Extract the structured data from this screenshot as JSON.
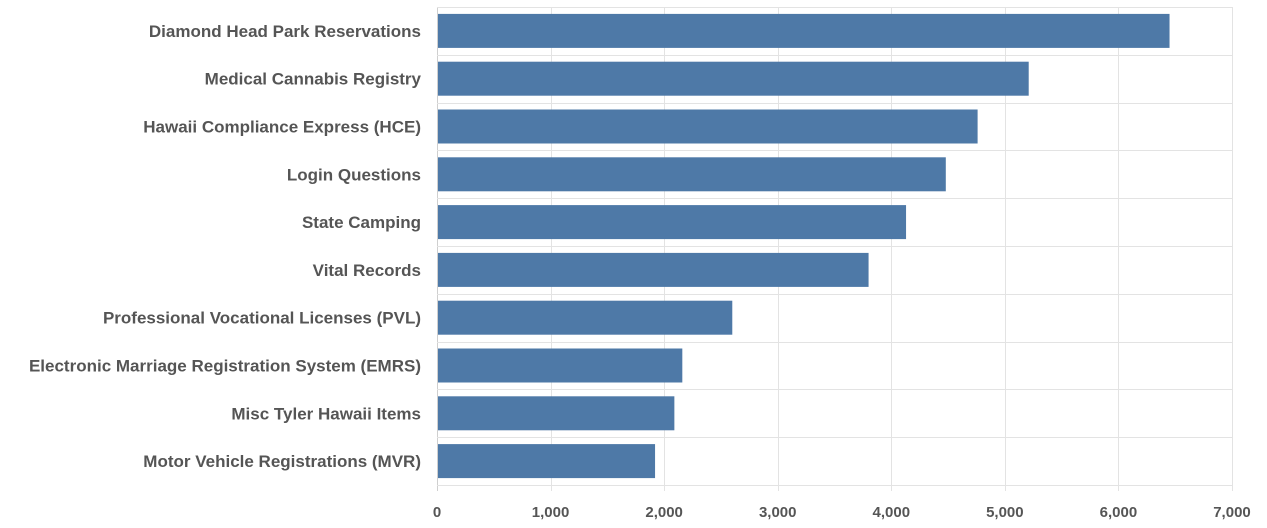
{
  "chart_data": {
    "type": "bar",
    "orientation": "horizontal",
    "title": "",
    "xlabel": "",
    "ylabel": "",
    "categories": [
      "Diamond Head Park Reservations",
      "Medical Cannabis Registry",
      "Hawaii Compliance Express (HCE)",
      "Login Questions",
      "State Camping",
      "Vital Records",
      "Professional Vocational Licenses (PVL)",
      "Electronic Marriage Registration System (EMRS)",
      "Misc Tyler Hawaii Items",
      "Motor Vehicle Registrations (MVR)"
    ],
    "values": [
      6450,
      5210,
      4760,
      4480,
      4130,
      3800,
      2600,
      2160,
      2090,
      1920
    ],
    "xlim": [
      0,
      7000
    ],
    "xticks": [
      0,
      1000,
      2000,
      3000,
      4000,
      5000,
      6000,
      7000
    ],
    "xtick_labels": [
      "0",
      "1,000",
      "2,000",
      "3,000",
      "4,000",
      "5,000",
      "6,000",
      "7,000"
    ],
    "grid": true,
    "legend": "none",
    "bar_color": "#4e79a7"
  }
}
